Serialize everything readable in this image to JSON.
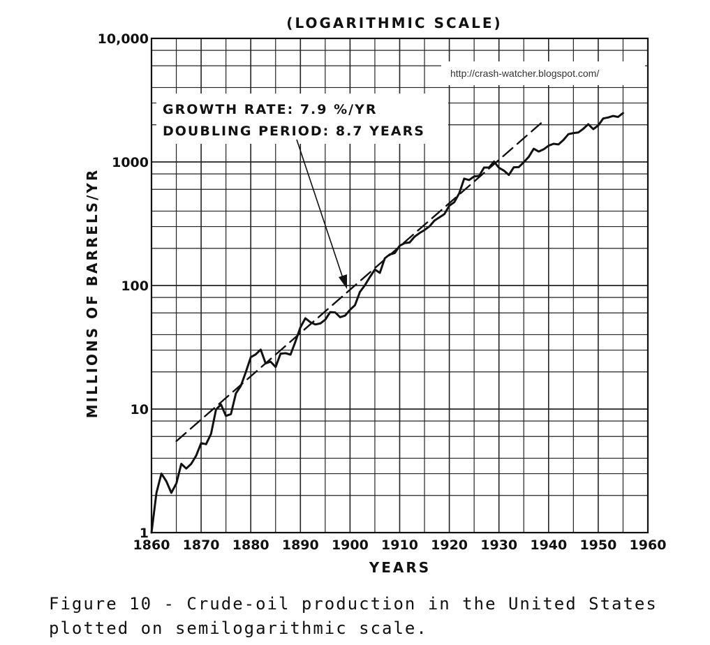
{
  "chart_data": {
    "type": "line",
    "title": "(LOGARITHMIC SCALE)",
    "xlabel": "YEARS",
    "ylabel": "MILLIONS OF BARRELS/YR",
    "xlim": [
      1860,
      1960
    ],
    "ylim": [
      1,
      10000
    ],
    "yscale": "log",
    "grid": true,
    "x_ticks": [
      "1860",
      "1870",
      "1880",
      "1890",
      "1900",
      "1910",
      "1920",
      "1930",
      "1940",
      "1950",
      "1960"
    ],
    "y_ticks": [
      "1",
      "10",
      "100",
      "1000",
      "10,000"
    ],
    "series": [
      {
        "style": "solid",
        "x": [
          1860,
          1861,
          1862,
          1863,
          1864,
          1865,
          1866,
          1867,
          1868,
          1869,
          1870,
          1871,
          1872,
          1873,
          1874,
          1875,
          1876,
          1877,
          1878,
          1879,
          1880,
          1881,
          1882,
          1883,
          1884,
          1885,
          1886,
          1887,
          1888,
          1889,
          1890,
          1891,
          1892,
          1893,
          1894,
          1895,
          1896,
          1897,
          1898,
          1899,
          1900,
          1901,
          1902,
          1903,
          1904,
          1905,
          1906,
          1907,
          1908,
          1909,
          1910,
          1911,
          1912,
          1913,
          1914,
          1915,
          1916,
          1917,
          1918,
          1919,
          1920,
          1921,
          1922,
          1923,
          1924,
          1925,
          1926,
          1927,
          1928,
          1929,
          1930,
          1931,
          1932,
          1933,
          1934,
          1935,
          1936,
          1937,
          1938,
          1939,
          1940,
          1941,
          1942,
          1943,
          1944,
          1945,
          1946,
          1947,
          1948,
          1949,
          1950,
          1951,
          1952,
          1953,
          1954,
          1955
        ],
        "values": [
          0.5,
          2.1,
          3.0,
          2.6,
          2.1,
          2.5,
          3.6,
          3.3,
          3.6,
          4.2,
          5.3,
          5.2,
          6.3,
          9.9,
          10.9,
          8.8,
          9.1,
          13.4,
          15.4,
          19.9,
          26.3,
          27.7,
          30.3,
          23.4,
          24.2,
          21.9,
          28.1,
          28.3,
          27.6,
          35.2,
          45.8,
          54.3,
          50.5,
          48.4,
          49.3,
          52.9,
          60.9,
          60.5,
          55.4,
          57.1,
          63.6,
          69.4,
          88.8,
          100.5,
          117.1,
          134.7,
          126.5,
          166.1,
          178.5,
          183.2,
          209.6,
          220.4,
          222.9,
          248.4,
          265.8,
          281.1,
          300.8,
          335.3,
          355.9,
          378.4,
          442.9,
          472.2,
          557.5,
          732.4,
          713.9,
          763.7,
          770.9,
          901.1,
          901.5,
          1007.3,
          898.0,
          851.1,
          785.2,
          905.7,
          908.1,
          996.6,
          1099.7,
          1279.2,
          1214.4,
          1265.0,
          1353.2,
          1402.2,
          1386.6,
          1505.6,
          1677.9,
          1713.7,
          1733.9,
          1856.9,
          2020.2,
          1841.9,
          1973.6,
          2247.7,
          2289.8,
          2357.1,
          2314.9,
          2484.4
        ]
      },
      {
        "style": "dashed",
        "x": [
          1865,
          1939
        ],
        "values": [
          5.5,
          2150
        ]
      }
    ],
    "annotations": [
      "GROWTH RATE: 7.9 %/YR",
      "DOUBLING PERIOD: 8.7 YEARS"
    ]
  },
  "watermark": "http://crash-watcher.blogspot.com/",
  "caption": {
    "line1": "Figure 10 - Crude-oil production in the United States",
    "line2": "plotted on semilogarithmic scale."
  },
  "colors": {
    "ink": "#111111",
    "background": "#ffffff"
  }
}
